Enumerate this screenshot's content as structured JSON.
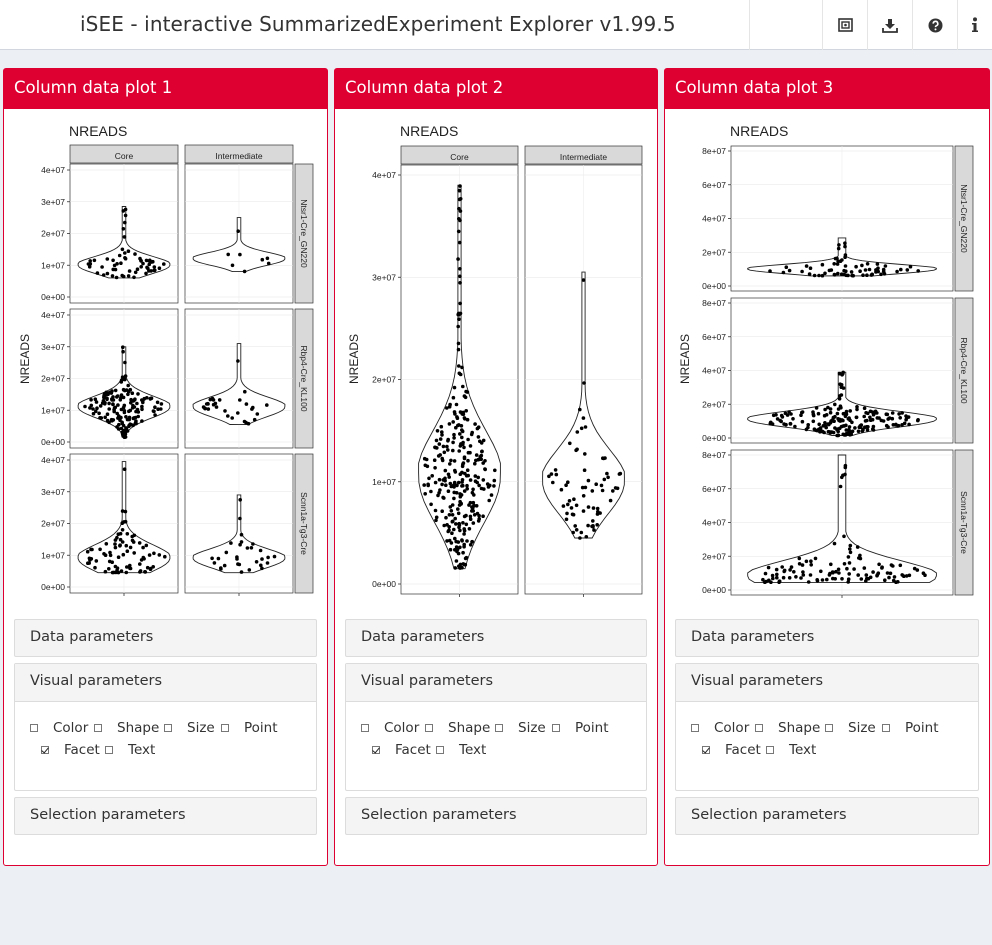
{
  "app": {
    "title": "iSEE - interactive SummarizedExperiment Explorer v1.99.5",
    "nav_icons": [
      "screenshot-icon",
      "download-icon",
      "help-icon",
      "info-icon"
    ]
  },
  "colors": {
    "accent": "#dd0031",
    "background": "#ecf0f5"
  },
  "panels": [
    {
      "title": "Column data plot 1",
      "sections": {
        "data": "Data parameters",
        "visual": "Visual parameters",
        "selection": "Selection parameters"
      },
      "options": [
        {
          "label": "Color",
          "checked": false
        },
        {
          "label": "Shape",
          "checked": false
        },
        {
          "label": "Size",
          "checked": false
        },
        {
          "label": "Point",
          "checked": false
        },
        {
          "label": "Facet",
          "checked": true
        },
        {
          "label": "Text",
          "checked": false
        }
      ]
    },
    {
      "title": "Column data plot 2",
      "sections": {
        "data": "Data parameters",
        "visual": "Visual parameters",
        "selection": "Selection parameters"
      },
      "options": [
        {
          "label": "Color",
          "checked": false
        },
        {
          "label": "Shape",
          "checked": false
        },
        {
          "label": "Size",
          "checked": false
        },
        {
          "label": "Point",
          "checked": false
        },
        {
          "label": "Facet",
          "checked": true
        },
        {
          "label": "Text",
          "checked": false
        }
      ]
    },
    {
      "title": "Column data plot 3",
      "sections": {
        "data": "Data parameters",
        "visual": "Visual parameters",
        "selection": "Selection parameters"
      },
      "options": [
        {
          "label": "Color",
          "checked": false
        },
        {
          "label": "Shape",
          "checked": false
        },
        {
          "label": "Size",
          "checked": false
        },
        {
          "label": "Point",
          "checked": false
        },
        {
          "label": "Facet",
          "checked": true
        },
        {
          "label": "Text",
          "checked": false
        }
      ]
    }
  ],
  "chart_data": [
    {
      "type": "violin",
      "title": "NREADS",
      "ylabel": "NREADS",
      "ylim": [
        0,
        40000000
      ],
      "yticks": [
        0,
        10000000,
        20000000,
        30000000,
        40000000
      ],
      "ytick_labels": [
        "0e+00",
        "1e+07",
        "2e+07",
        "3e+07",
        "4e+07"
      ],
      "col_facets": [
        "Core",
        "Intermediate"
      ],
      "row_facets": [
        "Ntsr1-Cre_GN220",
        "Rbp4-Cre_KL100",
        "Scnn1a-Tg3-Cre"
      ],
      "cells": [
        {
          "row": "Ntsr1-Cre_GN220",
          "col": "Core",
          "min": 6000000,
          "max": 28500000,
          "n": 60,
          "mode": 10000000
        },
        {
          "row": "Ntsr1-Cre_GN220",
          "col": "Intermediate",
          "min": 8000000,
          "max": 25000000,
          "n": 8,
          "mode": 12000000
        },
        {
          "row": "Rbp4-Cre_KL100",
          "col": "Core",
          "min": 1500000,
          "max": 30000000,
          "n": 160,
          "mode": 11000000
        },
        {
          "row": "Rbp4-Cre_KL100",
          "col": "Intermediate",
          "min": 5500000,
          "max": 31000000,
          "n": 30,
          "mode": 11000000
        },
        {
          "row": "Scnn1a-Tg3-Cre",
          "col": "Core",
          "min": 4500000,
          "max": 39500000,
          "n": 80,
          "mode": 9000000
        },
        {
          "row": "Scnn1a-Tg3-Cre",
          "col": "Intermediate",
          "min": 4500000,
          "max": 29000000,
          "n": 30,
          "mode": 9000000
        }
      ]
    },
    {
      "type": "violin",
      "title": "NREADS",
      "ylabel": "NREADS",
      "ylim": [
        0,
        40000000
      ],
      "yticks": [
        0,
        10000000,
        20000000,
        30000000,
        40000000
      ],
      "ytick_labels": [
        "0e+00",
        "1e+07",
        "2e+07",
        "3e+07",
        "4e+07"
      ],
      "col_facets": [
        "Core",
        "Intermediate"
      ],
      "row_facets": [],
      "cells": [
        {
          "row": "",
          "col": "Core",
          "min": 1500000,
          "max": 39000000,
          "n": 300,
          "mode": 10500000
        },
        {
          "row": "",
          "col": "Intermediate",
          "min": 4500000,
          "max": 30500000,
          "n": 70,
          "mode": 10000000
        }
      ]
    },
    {
      "type": "violin",
      "title": "NREADS",
      "ylabel": "NREADS",
      "ylim": [
        0,
        80000000
      ],
      "yticks": [
        0,
        20000000,
        40000000,
        60000000,
        80000000
      ],
      "ytick_labels": [
        "0e+00",
        "2e+07",
        "4e+07",
        "6e+07",
        "8e+07"
      ],
      "col_facets": [],
      "row_facets": [
        "Ntsr1-Cre_GN220",
        "Rbp4-Cre_KL100",
        "Scnn1a-Tg3-Cre"
      ],
      "cells": [
        {
          "row": "Ntsr1-Cre_GN220",
          "col": "",
          "min": 6000000,
          "max": 28500000,
          "n": 68,
          "mode": 10000000
        },
        {
          "row": "Rbp4-Cre_KL100",
          "col": "",
          "min": 1500000,
          "max": 39000000,
          "n": 190,
          "mode": 11000000
        },
        {
          "row": "Scnn1a-Tg3-Cre",
          "col": "",
          "min": 4500000,
          "max": 80000000,
          "n": 110,
          "mode": 8000000
        }
      ]
    }
  ]
}
